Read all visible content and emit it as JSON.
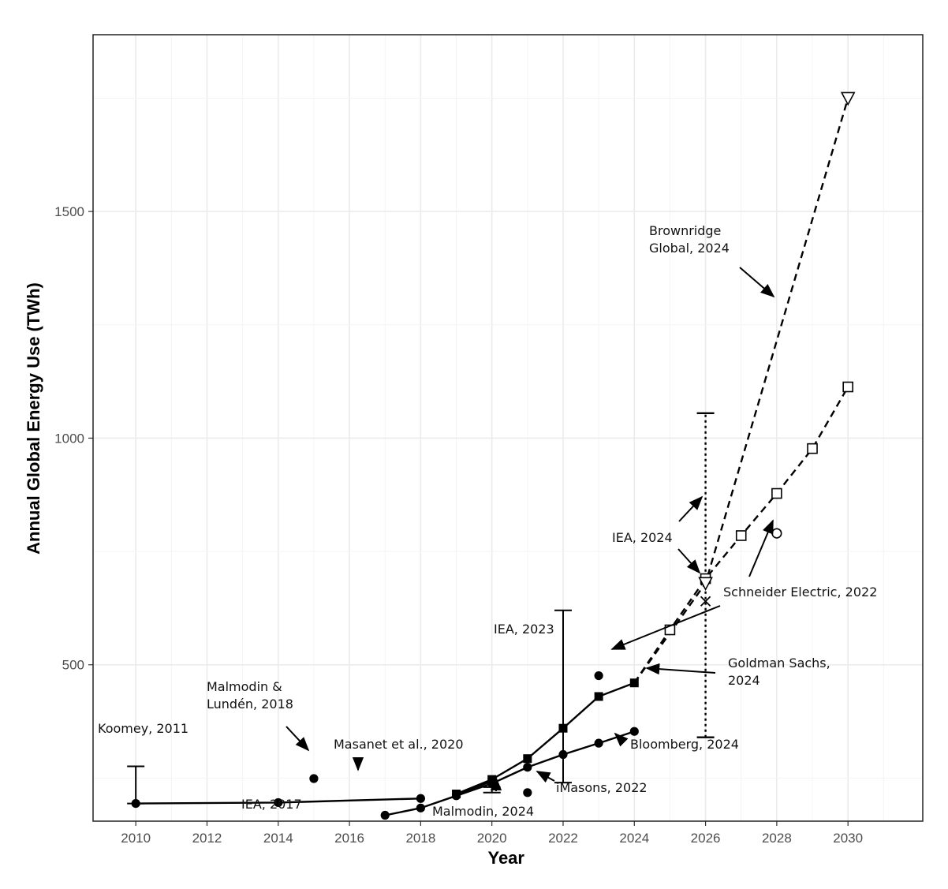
{
  "chart_data": {
    "type": "line",
    "title": "",
    "xlabel": "Year",
    "ylabel": "Annual Global Energy Use (TWh)",
    "xlim": [
      2008.8,
      2032.1
    ],
    "ylim": [
      155,
      1890
    ],
    "grid": true,
    "legend": "none",
    "x_ticks": [
      "2010",
      "2012",
      "2014",
      "2016",
      "2018",
      "2020",
      "2022",
      "2024",
      "2026",
      "2028",
      "2030"
    ],
    "x_tick_values": [
      2010,
      2012,
      2014,
      2016,
      2018,
      2020,
      2022,
      2024,
      2026,
      2028,
      2030
    ],
    "y_ticks": [
      "500",
      "1000",
      "1500"
    ],
    "y_tick_values": [
      500,
      1000,
      1500
    ],
    "series": [
      {
        "line": "solid",
        "marker": "circle",
        "x": [
          2010,
          2014,
          2018
        ],
        "y": [
          194,
          196,
          205
        ]
      },
      {
        "line": "solid",
        "marker": "circle",
        "x": [
          2017,
          2018,
          2019,
          2020,
          2021,
          2022,
          2023,
          2024
        ],
        "y": [
          168,
          184,
          211,
          238,
          274,
          302,
          327,
          353
        ]
      },
      {
        "line": "solid",
        "marker": "circle",
        "x": [
          2019,
          2020
        ],
        "y": [
          214,
          243
        ]
      },
      {
        "line": "solid",
        "marker": "square",
        "x": [
          2019,
          2020,
          2021,
          2022,
          2023,
          2024
        ],
        "y": [
          215,
          247,
          293,
          360,
          430,
          460
        ]
      },
      {
        "line": "dashed",
        "marker": "open-square",
        "x": [
          2024,
          2025,
          2026,
          2027,
          2028,
          2029,
          2030
        ],
        "y": [
          460,
          577,
          690,
          785,
          878,
          977,
          1113
        ]
      },
      {
        "line": "dashed",
        "marker": "open-triangle-down",
        "x": [
          2024,
          2026,
          2030
        ],
        "y": [
          460,
          680,
          1750
        ]
      },
      {
        "line": "none",
        "marker": "circle",
        "x": [
          2015,
          2021,
          2023
        ],
        "y": [
          249,
          218,
          476
        ]
      },
      {
        "line": "none",
        "marker": "open-circle",
        "x": [
          2028
        ],
        "y": [
          790
        ]
      },
      {
        "line": "none",
        "marker": "x",
        "x": [
          2026
        ],
        "y": [
          640
        ]
      }
    ],
    "error_bars": [
      {
        "x": 2010,
        "low": 194,
        "high": 276,
        "style": "solid"
      },
      {
        "x": 2020,
        "low": 218,
        "high": 230,
        "style": "solid"
      },
      {
        "x": 2022,
        "low": 240,
        "high": 620,
        "style": "solid"
      },
      {
        "x": 2026,
        "low": 340,
        "high": 1055,
        "style": "dotted"
      }
    ],
    "annotations": [
      {
        "lines": [
          "Koomey, 2011"
        ]
      },
      {
        "lines": [
          "Malmodin &",
          "Lundén, 2018"
        ]
      },
      {
        "lines": [
          "Masanet et al.,  2020"
        ]
      },
      {
        "lines": [
          "IEA, 2017"
        ]
      },
      {
        "lines": [
          "Malmodin, 2024"
        ]
      },
      {
        "lines": [
          "iMasons, 2022"
        ]
      },
      {
        "lines": [
          "Bloomberg, 2024"
        ]
      },
      {
        "lines": [
          "Goldman Sachs,",
          "2024"
        ]
      },
      {
        "lines": [
          "IEA, 2023"
        ]
      },
      {
        "lines": [
          "Schneider Electric, 2022"
        ]
      },
      {
        "lines": [
          "IEA, 2024"
        ]
      },
      {
        "lines": [
          "Brownridge",
          "Global, 2024"
        ]
      }
    ]
  }
}
